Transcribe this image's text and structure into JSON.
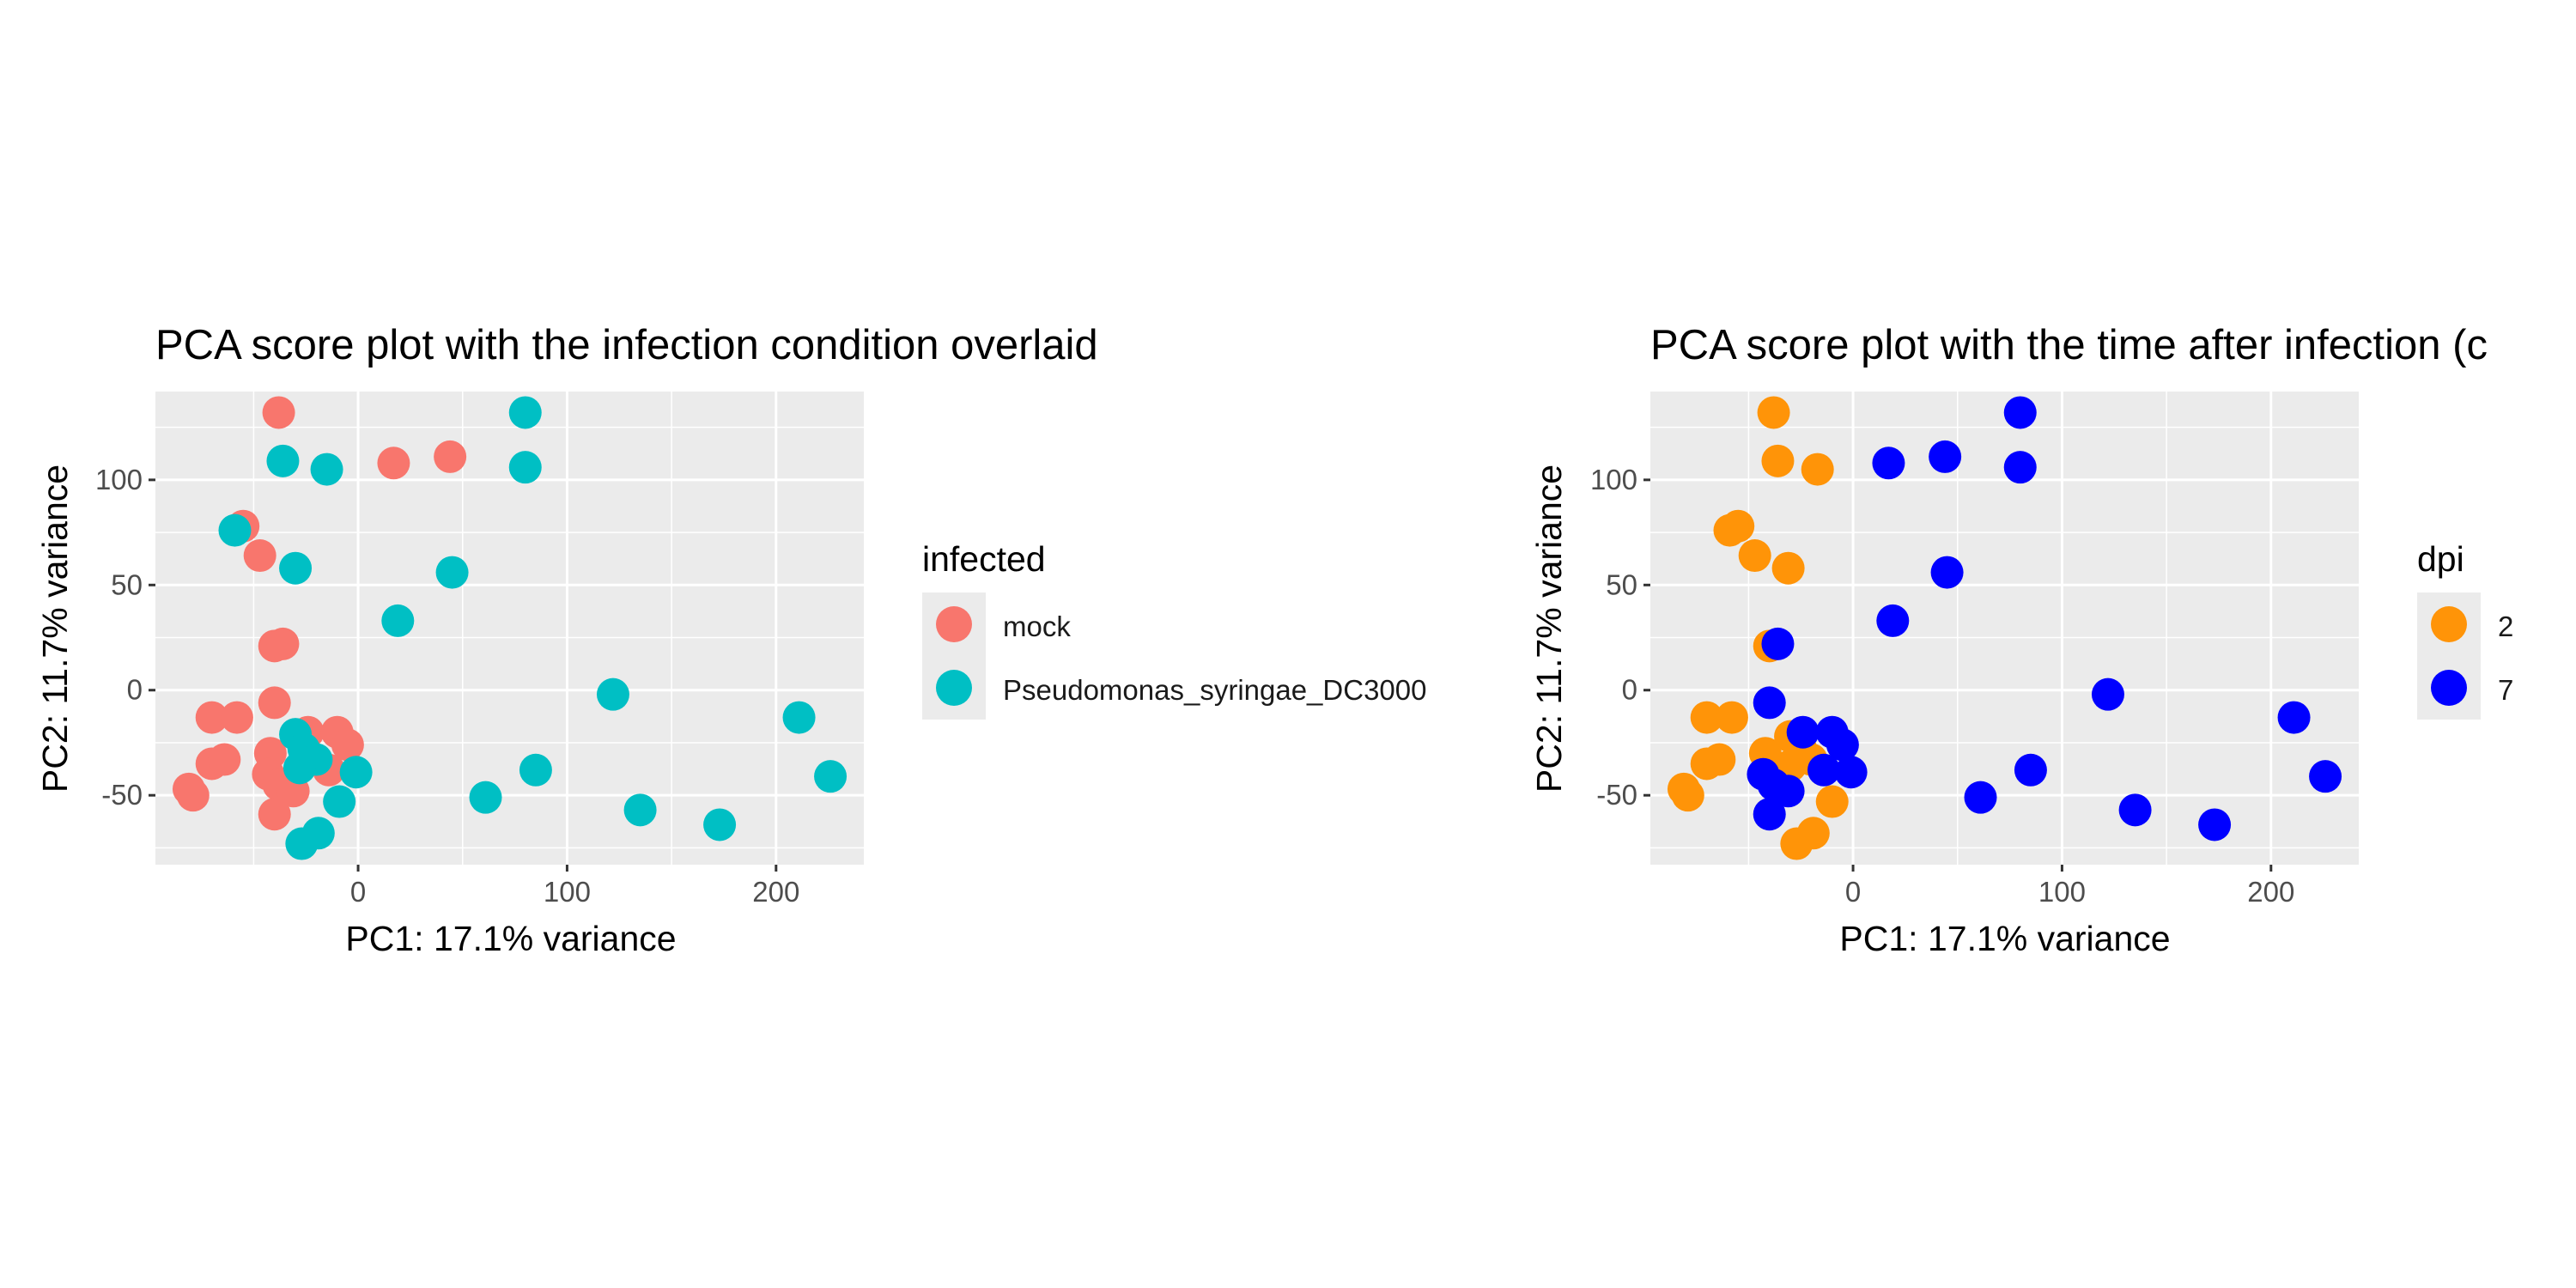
{
  "chart_data": [
    {
      "type": "scatter",
      "title": "PCA score plot with the infection condition overlaid",
      "xlabel": "PC1: 17.1% variance",
      "ylabel": "PC2: 11.7% variance",
      "xlim": [
        -97,
        242
      ],
      "ylim": [
        -83,
        142
      ],
      "x_ticks": [
        0,
        100,
        200
      ],
      "y_ticks": [
        -50,
        0,
        50,
        100
      ],
      "x_tick_labels": [
        "0",
        "100",
        "200"
      ],
      "y_tick_labels": [
        "-50",
        "0",
        "50",
        "100"
      ],
      "grid": true,
      "legend": {
        "title": "infected",
        "position": "right"
      },
      "series": [
        {
          "name": "mock",
          "color": "#F8766D",
          "points": [
            {
              "x": -38,
              "y": 132
            },
            {
              "x": 17,
              "y": 108
            },
            {
              "x": 44,
              "y": 111
            },
            {
              "x": -55,
              "y": 78
            },
            {
              "x": -47,
              "y": 64
            },
            {
              "x": -40,
              "y": 21
            },
            {
              "x": -36,
              "y": 22
            },
            {
              "x": -40,
              "y": -6
            },
            {
              "x": -70,
              "y": -13
            },
            {
              "x": -58,
              "y": -13
            },
            {
              "x": -70,
              "y": -35
            },
            {
              "x": -64,
              "y": -33
            },
            {
              "x": -81,
              "y": -47
            },
            {
              "x": -79,
              "y": -50
            },
            {
              "x": -42,
              "y": -30
            },
            {
              "x": -43,
              "y": -40
            },
            {
              "x": -38,
              "y": -45
            },
            {
              "x": -31,
              "y": -48
            },
            {
              "x": -40,
              "y": -59
            },
            {
              "x": -24,
              "y": -20
            },
            {
              "x": -10,
              "y": -20
            },
            {
              "x": -5,
              "y": -26
            },
            {
              "x": -14,
              "y": -38
            }
          ]
        },
        {
          "name": "Pseudomonas_syringae_DC3000",
          "color": "#00BFC4",
          "points": [
            {
              "x": 80,
              "y": 132
            },
            {
              "x": -36,
              "y": 109
            },
            {
              "x": -15,
              "y": 105
            },
            {
              "x": 80,
              "y": 106
            },
            {
              "x": -59,
              "y": 76
            },
            {
              "x": -30,
              "y": 58
            },
            {
              "x": 45,
              "y": 56
            },
            {
              "x": 19,
              "y": 33
            },
            {
              "x": 122,
              "y": -2
            },
            {
              "x": 211,
              "y": -13
            },
            {
              "x": 226,
              "y": -41
            },
            {
              "x": 85,
              "y": -38
            },
            {
              "x": 61,
              "y": -51
            },
            {
              "x": 135,
              "y": -57
            },
            {
              "x": 173,
              "y": -64
            },
            {
              "x": -30,
              "y": -21
            },
            {
              "x": -26,
              "y": -28
            },
            {
              "x": -20,
              "y": -33
            },
            {
              "x": -28,
              "y": -37
            },
            {
              "x": -1,
              "y": -39
            },
            {
              "x": -9,
              "y": -53
            },
            {
              "x": -19,
              "y": -68
            },
            {
              "x": -27,
              "y": -73
            }
          ]
        }
      ]
    },
    {
      "type": "scatter",
      "title": "PCA score plot with the time after infection (c",
      "xlabel": "PC1: 17.1% variance",
      "ylabel": "PC2: 11.7% variance",
      "xlim": [
        -97,
        242
      ],
      "ylim": [
        -83,
        142
      ],
      "x_ticks": [
        0,
        100,
        200
      ],
      "y_ticks": [
        -50,
        0,
        50,
        100
      ],
      "x_tick_labels": [
        "0",
        "100",
        "200"
      ],
      "y_tick_labels": [
        "-50",
        "0",
        "50",
        "100"
      ],
      "grid": true,
      "legend": {
        "title": "dpi",
        "position": "right"
      },
      "series": [
        {
          "name": "2",
          "color": "#FF9408",
          "points": [
            {
              "x": -38,
              "y": 132
            },
            {
              "x": -36,
              "y": 109
            },
            {
              "x": -17,
              "y": 105
            },
            {
              "x": -55,
              "y": 78
            },
            {
              "x": -59,
              "y": 76
            },
            {
              "x": -47,
              "y": 64
            },
            {
              "x": -31,
              "y": 58
            },
            {
              "x": -40,
              "y": 21
            },
            {
              "x": -70,
              "y": -13
            },
            {
              "x": -58,
              "y": -13
            },
            {
              "x": -70,
              "y": -35
            },
            {
              "x": -64,
              "y": -33
            },
            {
              "x": -81,
              "y": -47
            },
            {
              "x": -79,
              "y": -50
            },
            {
              "x": -42,
              "y": -30
            },
            {
              "x": -30,
              "y": -22
            },
            {
              "x": -25,
              "y": -28
            },
            {
              "x": -20,
              "y": -33
            },
            {
              "x": -30,
              "y": -36
            },
            {
              "x": -10,
              "y": -53
            },
            {
              "x": -19,
              "y": -68
            },
            {
              "x": -27,
              "y": -73
            }
          ]
        },
        {
          "name": "7",
          "color": "#0000FF",
          "points": [
            {
              "x": 80,
              "y": 132
            },
            {
              "x": 17,
              "y": 108
            },
            {
              "x": 44,
              "y": 111
            },
            {
              "x": 80,
              "y": 106
            },
            {
              "x": 45,
              "y": 56
            },
            {
              "x": 19,
              "y": 33
            },
            {
              "x": -36,
              "y": 22
            },
            {
              "x": -40,
              "y": -6
            },
            {
              "x": 122,
              "y": -2
            },
            {
              "x": 211,
              "y": -13
            },
            {
              "x": 226,
              "y": -41
            },
            {
              "x": 85,
              "y": -38
            },
            {
              "x": 61,
              "y": -51
            },
            {
              "x": 135,
              "y": -57
            },
            {
              "x": 173,
              "y": -64
            },
            {
              "x": -24,
              "y": -20
            },
            {
              "x": -10,
              "y": -20
            },
            {
              "x": -5,
              "y": -26
            },
            {
              "x": -1,
              "y": -39
            },
            {
              "x": -14,
              "y": -38
            },
            {
              "x": -43,
              "y": -40
            },
            {
              "x": -38,
              "y": -45
            },
            {
              "x": -31,
              "y": -48
            },
            {
              "x": -40,
              "y": -59
            }
          ]
        }
      ]
    }
  ]
}
